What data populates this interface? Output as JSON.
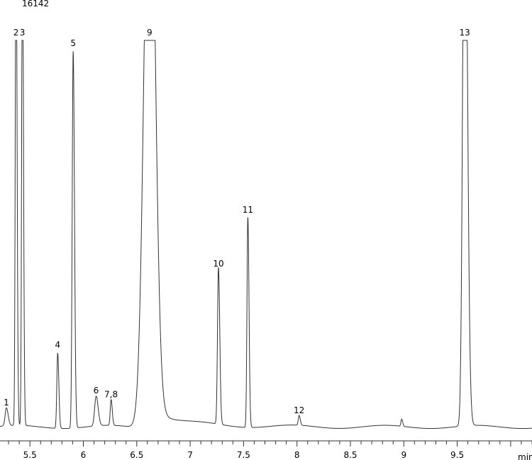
{
  "chart_data": {
    "type": "line",
    "title": "16142",
    "xlabel": "min",
    "xlim": [
      5.22,
      10.2
    ],
    "x_major_ticks": [
      5.5,
      6,
      6.5,
      7,
      7.5,
      8,
      8.5,
      9,
      9.5
    ],
    "x_minor_step": 0.1,
    "grid": false,
    "peaks": [
      {
        "label": "1",
        "time": 5.28,
        "height": 0.045,
        "width": 0.012
      },
      {
        "label": "2",
        "time": 5.37,
        "height": 1.3,
        "width": 0.007
      },
      {
        "label": "3",
        "time": 5.43,
        "height": 1.3,
        "width": 0.007
      },
      {
        "label": "4",
        "time": 5.76,
        "height": 0.19,
        "width": 0.008
      },
      {
        "label": "5",
        "time": 5.905,
        "height": 0.95,
        "width": 0.009
      },
      {
        "label": "6",
        "time": 6.12,
        "height": 0.075,
        "width": 0.014
      },
      {
        "label": "7,8",
        "time": 6.26,
        "height": 0.065,
        "width": 0.008
      },
      {
        "label": "9",
        "time": 6.62,
        "height": 1.6,
        "width": 0.05
      },
      {
        "label": "10",
        "time": 7.265,
        "height": 0.395,
        "width": 0.009
      },
      {
        "label": "11",
        "time": 7.54,
        "height": 0.53,
        "width": 0.008
      },
      {
        "label": "12",
        "time": 8.02,
        "height": 0.025,
        "width": 0.008
      },
      {
        "label": "13",
        "time": 9.57,
        "height": 1.6,
        "width": 0.018
      }
    ],
    "unlabeled_peaks": [
      {
        "time": 8.98,
        "height": 0.018,
        "width": 0.007
      }
    ]
  }
}
